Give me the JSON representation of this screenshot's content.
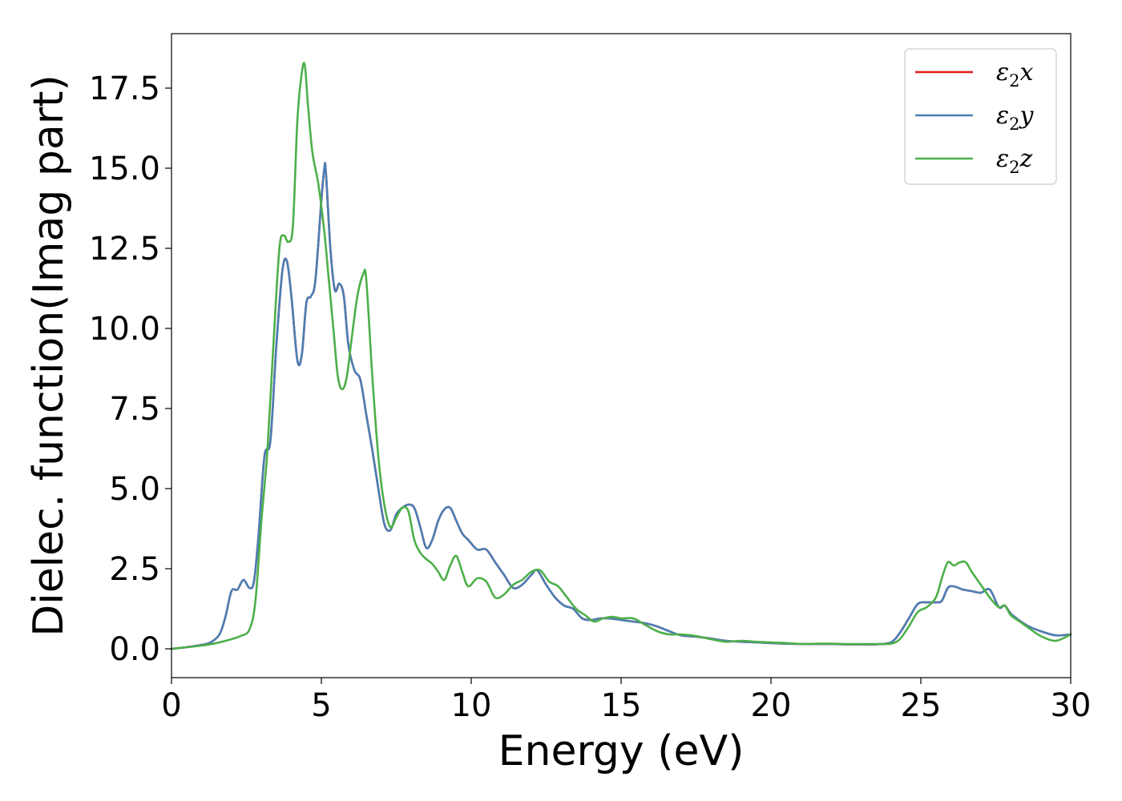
{
  "chart_data": {
    "type": "line",
    "xlabel": "Energy (eV)",
    "ylabel": "Dielec. function(Imag part)",
    "xlim": [
      0,
      30
    ],
    "ylim": [
      -0.9,
      19.2
    ],
    "xticks": [
      0,
      5,
      10,
      15,
      20,
      25,
      30
    ],
    "xtick_labels": [
      "0",
      "5",
      "10",
      "15",
      "20",
      "25",
      "30"
    ],
    "yticks": [
      0,
      2.5,
      5,
      7.5,
      10,
      12.5,
      15,
      17.5
    ],
    "ytick_labels": [
      "0.0",
      "2.5",
      "5.0",
      "7.5",
      "10.0",
      "12.5",
      "15.0",
      "17.5"
    ],
    "grid": false,
    "legend_position": "top-right",
    "series": [
      {
        "name": "x",
        "legend_symbol": "ε",
        "legend_sub": "2",
        "legend_suffix": "x",
        "color": "#e41a1c",
        "x": [
          0,
          0.5,
          1.0,
          1.3,
          1.6,
          1.8,
          2.0,
          2.2,
          2.4,
          2.6,
          2.75,
          2.9,
          3.1,
          3.3,
          3.5,
          3.7,
          3.85,
          4.0,
          4.2,
          4.35,
          4.5,
          4.65,
          4.8,
          5.0,
          5.1,
          5.15,
          5.3,
          5.45,
          5.6,
          5.75,
          5.9,
          6.1,
          6.3,
          6.5,
          6.7,
          6.9,
          7.1,
          7.3,
          7.5,
          7.7,
          7.9,
          8.1,
          8.3,
          8.5,
          8.7,
          8.9,
          9.1,
          9.3,
          9.5,
          9.7,
          9.9,
          10.2,
          10.5,
          10.8,
          11.1,
          11.4,
          11.7,
          12.0,
          12.2,
          12.5,
          12.8,
          13.1,
          13.4,
          13.7,
          14.0,
          14.3,
          14.6,
          15.0,
          15.4,
          15.8,
          16.2,
          16.6,
          17.0,
          17.5,
          18.0,
          18.5,
          19.0,
          19.5,
          20.0,
          20.5,
          21.0,
          21.5,
          22.0,
          22.5,
          23.0,
          23.5,
          24.0,
          24.3,
          24.6,
          24.9,
          25.2,
          25.5,
          25.7,
          25.9,
          26.1,
          26.4,
          26.7,
          27.0,
          27.3,
          27.6,
          27.8,
          28.0,
          28.3,
          28.6,
          29.0,
          29.5,
          30.0
        ],
        "y": [
          0.0,
          0.05,
          0.12,
          0.2,
          0.45,
          1.0,
          1.8,
          1.85,
          2.15,
          1.9,
          2.1,
          3.5,
          6.0,
          6.5,
          9.5,
          11.8,
          12.1,
          11.0,
          9.0,
          9.2,
          10.8,
          11.0,
          11.5,
          14.0,
          15.0,
          14.9,
          12.5,
          11.2,
          11.4,
          11.0,
          9.5,
          8.7,
          8.4,
          7.3,
          6.2,
          5.0,
          3.9,
          3.7,
          4.2,
          4.4,
          4.5,
          4.4,
          3.8,
          3.15,
          3.4,
          4.0,
          4.35,
          4.4,
          4.0,
          3.6,
          3.4,
          3.1,
          3.1,
          2.7,
          2.3,
          1.9,
          2.0,
          2.3,
          2.45,
          2.0,
          1.6,
          1.35,
          1.25,
          0.95,
          0.9,
          0.95,
          0.95,
          0.9,
          0.85,
          0.8,
          0.7,
          0.55,
          0.42,
          0.38,
          0.32,
          0.25,
          0.22,
          0.2,
          0.18,
          0.16,
          0.15,
          0.15,
          0.15,
          0.14,
          0.14,
          0.14,
          0.2,
          0.5,
          0.95,
          1.4,
          1.45,
          1.45,
          1.5,
          1.9,
          1.95,
          1.85,
          1.8,
          1.75,
          1.85,
          1.3,
          1.35,
          1.1,
          0.88,
          0.7,
          0.55,
          0.42,
          0.45
        ]
      },
      {
        "name": "y",
        "legend_symbol": "ε",
        "legend_sub": "2",
        "legend_suffix": "y",
        "color": "#4a7fb5",
        "x": [
          0,
          0.5,
          1.0,
          1.3,
          1.6,
          1.8,
          2.0,
          2.2,
          2.4,
          2.6,
          2.75,
          2.9,
          3.1,
          3.3,
          3.5,
          3.7,
          3.85,
          4.0,
          4.2,
          4.35,
          4.5,
          4.65,
          4.8,
          5.0,
          5.1,
          5.15,
          5.3,
          5.45,
          5.6,
          5.75,
          5.9,
          6.1,
          6.3,
          6.5,
          6.7,
          6.9,
          7.1,
          7.3,
          7.5,
          7.7,
          7.9,
          8.1,
          8.3,
          8.5,
          8.7,
          8.9,
          9.1,
          9.3,
          9.5,
          9.7,
          9.9,
          10.2,
          10.5,
          10.8,
          11.1,
          11.4,
          11.7,
          12.0,
          12.2,
          12.5,
          12.8,
          13.1,
          13.4,
          13.7,
          14.0,
          14.3,
          14.6,
          15.0,
          15.4,
          15.8,
          16.2,
          16.6,
          17.0,
          17.5,
          18.0,
          18.5,
          19.0,
          19.5,
          20.0,
          20.5,
          21.0,
          21.5,
          22.0,
          22.5,
          23.0,
          23.5,
          24.0,
          24.3,
          24.6,
          24.9,
          25.2,
          25.5,
          25.7,
          25.9,
          26.1,
          26.4,
          26.7,
          27.0,
          27.3,
          27.6,
          27.8,
          28.0,
          28.3,
          28.6,
          29.0,
          29.5,
          30.0
        ],
        "y": [
          0.0,
          0.05,
          0.12,
          0.2,
          0.45,
          1.0,
          1.8,
          1.85,
          2.15,
          1.9,
          2.1,
          3.5,
          6.0,
          6.5,
          9.5,
          11.8,
          12.1,
          11.0,
          9.0,
          9.2,
          10.8,
          11.0,
          11.5,
          14.0,
          15.0,
          14.9,
          12.5,
          11.2,
          11.4,
          11.0,
          9.5,
          8.7,
          8.4,
          7.3,
          6.2,
          5.0,
          3.9,
          3.7,
          4.2,
          4.4,
          4.5,
          4.4,
          3.8,
          3.15,
          3.4,
          4.0,
          4.35,
          4.4,
          4.0,
          3.6,
          3.4,
          3.1,
          3.1,
          2.7,
          2.3,
          1.9,
          2.0,
          2.3,
          2.45,
          2.0,
          1.6,
          1.35,
          1.25,
          0.95,
          0.9,
          0.95,
          0.95,
          0.9,
          0.85,
          0.8,
          0.7,
          0.55,
          0.42,
          0.38,
          0.32,
          0.25,
          0.22,
          0.2,
          0.18,
          0.16,
          0.15,
          0.15,
          0.15,
          0.14,
          0.14,
          0.14,
          0.2,
          0.5,
          0.95,
          1.4,
          1.45,
          1.45,
          1.5,
          1.9,
          1.95,
          1.85,
          1.8,
          1.75,
          1.85,
          1.3,
          1.35,
          1.1,
          0.88,
          0.7,
          0.55,
          0.42,
          0.45
        ]
      },
      {
        "name": "z",
        "legend_symbol": "ε",
        "legend_sub": "2",
        "legend_suffix": "z",
        "color": "#4daf4a",
        "x": [
          0,
          0.5,
          1.0,
          1.5,
          2.0,
          2.3,
          2.6,
          2.8,
          3.0,
          3.2,
          3.4,
          3.6,
          3.75,
          3.9,
          4.05,
          4.2,
          4.35,
          4.45,
          4.55,
          4.7,
          4.9,
          5.1,
          5.25,
          5.4,
          5.55,
          5.7,
          5.85,
          6.0,
          6.2,
          6.4,
          6.5,
          6.7,
          6.9,
          7.1,
          7.3,
          7.5,
          7.7,
          7.9,
          8.1,
          8.3,
          8.5,
          8.7,
          8.9,
          9.1,
          9.3,
          9.5,
          9.7,
          9.9,
          10.2,
          10.5,
          10.8,
          11.1,
          11.4,
          11.7,
          12.0,
          12.3,
          12.6,
          12.9,
          13.2,
          13.5,
          13.8,
          14.1,
          14.4,
          14.7,
          15.0,
          15.4,
          15.8,
          16.2,
          16.6,
          17.0,
          17.5,
          18.0,
          18.5,
          19.0,
          19.5,
          20.0,
          20.5,
          21.0,
          21.5,
          22.0,
          22.5,
          23.0,
          23.5,
          24.0,
          24.3,
          24.6,
          24.9,
          25.2,
          25.5,
          25.7,
          25.9,
          26.1,
          26.3,
          26.5,
          26.7,
          27.0,
          27.3,
          27.6,
          27.8,
          28.0,
          28.3,
          28.6,
          29.0,
          29.5,
          30.0
        ],
        "y": [
          0.0,
          0.05,
          0.1,
          0.18,
          0.3,
          0.4,
          0.6,
          1.5,
          4.0,
          6.2,
          9.5,
          12.5,
          12.9,
          12.7,
          13.2,
          16.5,
          18.0,
          18.2,
          17.0,
          15.5,
          14.5,
          13.0,
          11.5,
          10.0,
          8.5,
          8.1,
          8.5,
          9.6,
          11.0,
          11.7,
          11.5,
          8.5,
          6.0,
          4.5,
          3.8,
          4.1,
          4.4,
          4.3,
          3.4,
          3.0,
          2.8,
          2.65,
          2.4,
          2.15,
          2.6,
          2.9,
          2.4,
          1.95,
          2.2,
          2.1,
          1.6,
          1.7,
          2.0,
          2.15,
          2.4,
          2.45,
          2.1,
          1.95,
          1.6,
          1.25,
          1.05,
          0.85,
          0.95,
          1.0,
          0.95,
          0.95,
          0.75,
          0.55,
          0.45,
          0.45,
          0.4,
          0.3,
          0.22,
          0.25,
          0.22,
          0.2,
          0.18,
          0.15,
          0.16,
          0.16,
          0.15,
          0.15,
          0.15,
          0.16,
          0.3,
          0.7,
          1.15,
          1.3,
          1.6,
          2.2,
          2.7,
          2.6,
          2.7,
          2.7,
          2.4,
          2.0,
          1.6,
          1.3,
          1.35,
          1.05,
          0.85,
          0.65,
          0.4,
          0.25,
          0.45
        ]
      }
    ]
  }
}
